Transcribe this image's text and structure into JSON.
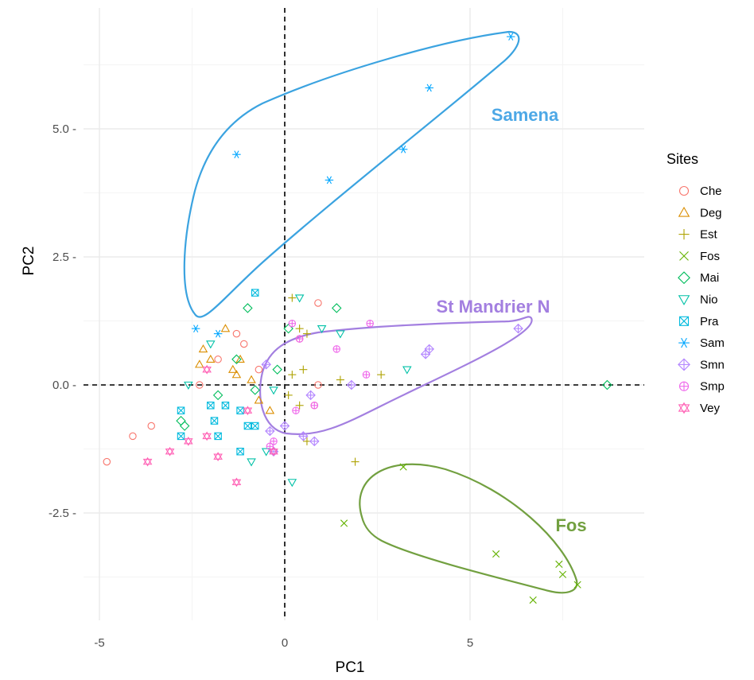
{
  "chart_data": {
    "type": "scatter",
    "xlabel": "PC1",
    "ylabel": "PC2",
    "xlim": [
      -5.5,
      9.5
    ],
    "ylim": [
      -4.6,
      7.0
    ],
    "x_ticks": [
      -5,
      0,
      5
    ],
    "x_tick_labels": [
      "-5",
      "0",
      "5"
    ],
    "y_ticks": [
      -2.5,
      0,
      2.5,
      5
    ],
    "y_tick_labels": [
      "-2.5 -",
      "0.0 -",
      "2.5 -",
      "5.0 -"
    ],
    "grid": true,
    "reference_lines": {
      "x": 0,
      "y": 0,
      "style": "dashed"
    },
    "legend": {
      "title": "Sites",
      "position": "right"
    },
    "series": [
      {
        "name": "Che",
        "color": "#F8766D",
        "shape": "circle",
        "points": [
          [
            -4.8,
            -1.5
          ],
          [
            -4.1,
            -1.0
          ],
          [
            -3.6,
            -0.8
          ],
          [
            -2.3,
            0.0
          ],
          [
            -1.8,
            0.5
          ],
          [
            -1.3,
            1.0
          ],
          [
            -1.1,
            0.8
          ],
          [
            -0.7,
            0.3
          ],
          [
            0.4,
            0.9
          ],
          [
            0.9,
            0.0
          ],
          [
            0.9,
            1.6
          ],
          [
            0.8,
            -0.4
          ]
        ]
      },
      {
        "name": "Deg",
        "color": "#DB8E00",
        "shape": "triangle",
        "points": [
          [
            -2.3,
            0.4
          ],
          [
            -2.2,
            0.7
          ],
          [
            -2.0,
            0.5
          ],
          [
            -1.6,
            1.1
          ],
          [
            -1.4,
            0.3
          ],
          [
            -1.3,
            0.2
          ],
          [
            -1.2,
            0.5
          ],
          [
            -0.9,
            0.1
          ],
          [
            -0.7,
            -0.3
          ],
          [
            -0.4,
            -0.5
          ]
        ]
      },
      {
        "name": "Est",
        "color": "#AEA200",
        "shape": "plus",
        "points": [
          [
            0.2,
            1.7
          ],
          [
            0.4,
            1.1
          ],
          [
            0.6,
            1.0
          ],
          [
            0.5,
            0.3
          ],
          [
            0.2,
            0.2
          ],
          [
            0.1,
            -0.2
          ],
          [
            0.6,
            -1.1
          ],
          [
            1.9,
            -1.5
          ],
          [
            2.6,
            0.2
          ],
          [
            1.5,
            0.1
          ],
          [
            0.4,
            -0.4
          ]
        ]
      },
      {
        "name": "Fos",
        "color": "#64B200",
        "shape": "cross",
        "points": [
          [
            1.6,
            -2.7
          ],
          [
            3.2,
            -1.6
          ],
          [
            5.7,
            -3.3
          ],
          [
            6.7,
            -4.2
          ],
          [
            7.4,
            -3.5
          ],
          [
            7.5,
            -3.7
          ],
          [
            7.9,
            -3.9
          ]
        ]
      },
      {
        "name": "Mai",
        "color": "#00BD5C",
        "shape": "diamond",
        "points": [
          [
            -2.8,
            -0.7
          ],
          [
            -2.7,
            -0.8
          ],
          [
            -1.8,
            -0.2
          ],
          [
            -1.3,
            0.5
          ],
          [
            -1.0,
            1.5
          ],
          [
            -0.2,
            0.3
          ],
          [
            0.1,
            1.1
          ],
          [
            1.4,
            1.5
          ],
          [
            8.7,
            0.0
          ],
          [
            -0.8,
            -0.1
          ]
        ]
      },
      {
        "name": "Nio",
        "color": "#00C1A7",
        "shape": "triangle-down",
        "points": [
          [
            -2.6,
            0.0
          ],
          [
            -2.0,
            0.8
          ],
          [
            -0.9,
            -1.5
          ],
          [
            -0.5,
            -1.3
          ],
          [
            0.2,
            -1.9
          ],
          [
            0.4,
            1.7
          ],
          [
            1.0,
            1.1
          ],
          [
            1.5,
            1.0
          ],
          [
            3.3,
            0.3
          ],
          [
            -0.3,
            -0.1
          ]
        ]
      },
      {
        "name": "Pra",
        "color": "#00BADE",
        "shape": "square-cross",
        "points": [
          [
            -2.8,
            -0.5
          ],
          [
            -2.8,
            -1.0
          ],
          [
            -2.0,
            -0.4
          ],
          [
            -1.9,
            -0.7
          ],
          [
            -1.6,
            -0.4
          ],
          [
            -1.2,
            -0.5
          ],
          [
            -1.0,
            -0.8
          ],
          [
            -0.8,
            -0.8
          ],
          [
            -1.2,
            -1.3
          ],
          [
            -0.8,
            1.8
          ],
          [
            -1.8,
            -1.0
          ]
        ]
      },
      {
        "name": "Sam",
        "color": "#00A6FF",
        "shape": "asterisk",
        "points": [
          [
            -1.3,
            4.5
          ],
          [
            1.2,
            4.0
          ],
          [
            3.2,
            4.6
          ],
          [
            3.9,
            5.8
          ],
          [
            6.1,
            6.8
          ],
          [
            -2.4,
            1.1
          ],
          [
            -1.8,
            1.0
          ]
        ]
      },
      {
        "name": "Smn",
        "color": "#B385FF",
        "shape": "diamond-plus",
        "points": [
          [
            -0.5,
            0.4
          ],
          [
            -0.4,
            -0.9
          ],
          [
            -0.3,
            -1.3
          ],
          [
            0.0,
            -0.8
          ],
          [
            0.5,
            -1.0
          ],
          [
            0.7,
            -0.2
          ],
          [
            0.8,
            -1.1
          ],
          [
            1.8,
            0.0
          ],
          [
            3.8,
            0.6
          ],
          [
            3.9,
            0.7
          ],
          [
            6.3,
            1.1
          ]
        ]
      },
      {
        "name": "Smp",
        "color": "#EF67EB",
        "shape": "circle-plus",
        "points": [
          [
            -0.4,
            -1.2
          ],
          [
            0.2,
            1.2
          ],
          [
            0.4,
            0.9
          ],
          [
            1.4,
            0.7
          ],
          [
            2.3,
            1.2
          ],
          [
            2.2,
            0.2
          ],
          [
            0.8,
            -0.4
          ],
          [
            -0.3,
            -1.1
          ],
          [
            0.3,
            -0.5
          ]
        ]
      },
      {
        "name": "Vey",
        "color": "#FF63B6",
        "shape": "star",
        "points": [
          [
            -3.7,
            -1.5
          ],
          [
            -3.1,
            -1.3
          ],
          [
            -2.6,
            -1.1
          ],
          [
            -2.1,
            -1.0
          ],
          [
            -1.8,
            -1.4
          ],
          [
            -1.3,
            -1.9
          ],
          [
            -1.0,
            -0.5
          ],
          [
            -0.3,
            -1.3
          ],
          [
            -2.1,
            0.3
          ]
        ]
      }
    ],
    "annotations": [
      {
        "text": "Samena",
        "color": "#4DA8E6"
      },
      {
        "text": "St Mandrier N",
        "color": "#A37FE0"
      },
      {
        "text": "Fos",
        "color": "#72A040"
      }
    ]
  }
}
